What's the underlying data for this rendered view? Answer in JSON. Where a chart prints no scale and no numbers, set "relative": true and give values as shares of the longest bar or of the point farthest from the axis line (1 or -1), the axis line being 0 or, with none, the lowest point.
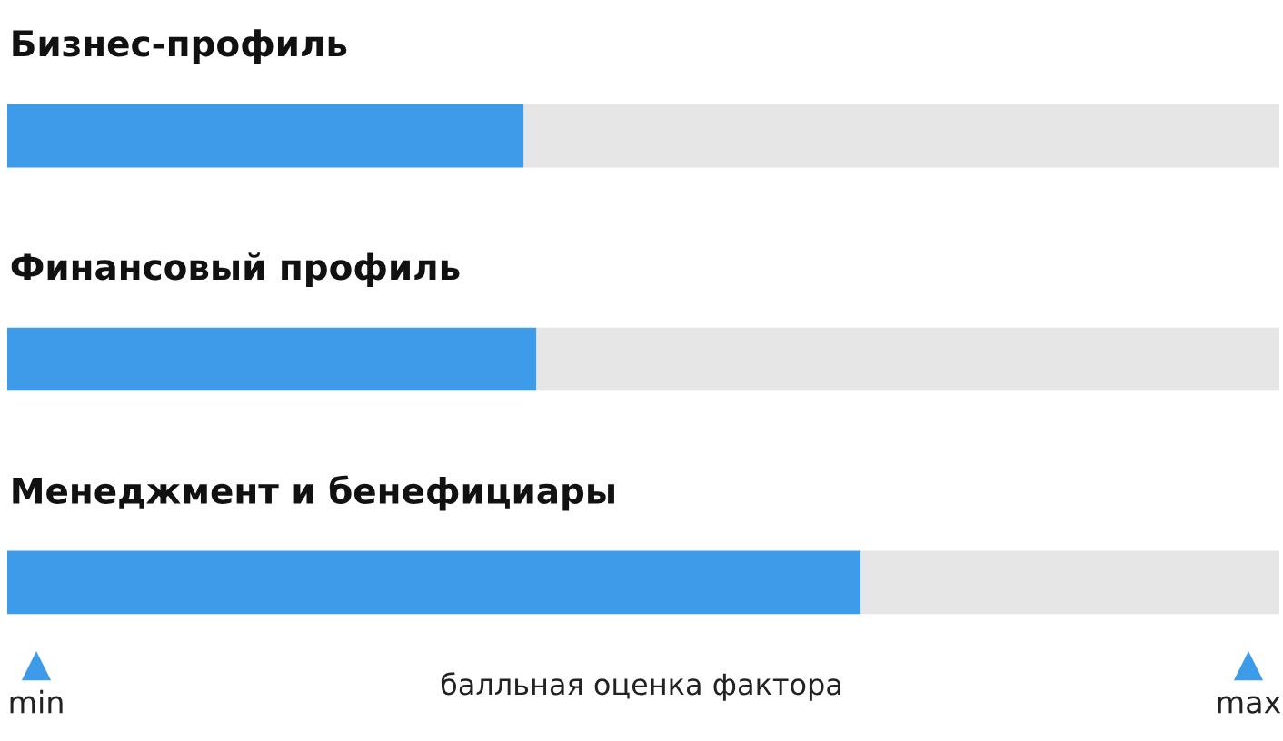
{
  "chart_data": {
    "type": "bar",
    "orientation": "horizontal",
    "stacked": true,
    "relative": true,
    "categories": [
      "Бизнес-профиль",
      "Финансовый профиль",
      "Менеджмент и бенефициары"
    ],
    "series": [
      {
        "color": "#3d9be9",
        "values": [
          0.406,
          0.416,
          0.671
        ]
      },
      {
        "color": "#e6e6e6",
        "values": [
          0.594,
          0.584,
          0.329
        ]
      }
    ],
    "xlabel": "балльная оценка фактора",
    "annotations": [
      "min",
      "max"
    ],
    "legend": false
  }
}
